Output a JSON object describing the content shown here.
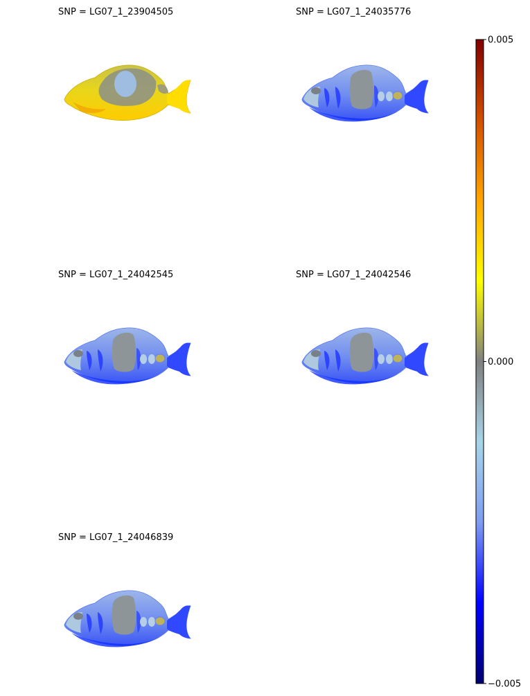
{
  "chart_data": {
    "type": "heatmap",
    "panels": [
      {
        "title": "SNP = LG07_1_23904505",
        "pattern": "positive"
      },
      {
        "title": "SNP = LG07_1_24035776",
        "pattern": "negative"
      },
      {
        "title": "SNP = LG07_1_24042545",
        "pattern": "negative"
      },
      {
        "title": "SNP = LG07_1_24042546",
        "pattern": "negative"
      },
      {
        "title": "SNP = LG07_1_24046839",
        "pattern": "negative"
      }
    ],
    "colorbar": {
      "range": [
        -0.005,
        0.005
      ],
      "ticks": [
        {
          "value": 0.005,
          "label": "0.005"
        },
        {
          "value": 0.0,
          "label": "0.000"
        },
        {
          "value": -0.005,
          "label": "−0.005"
        }
      ],
      "colors": [
        "#00006e",
        "#0000ff",
        "#7f9cf0",
        "#a8d4e8",
        "#808080",
        "#ffff00",
        "#ffa500",
        "#d05000",
        "#800000"
      ]
    }
  }
}
